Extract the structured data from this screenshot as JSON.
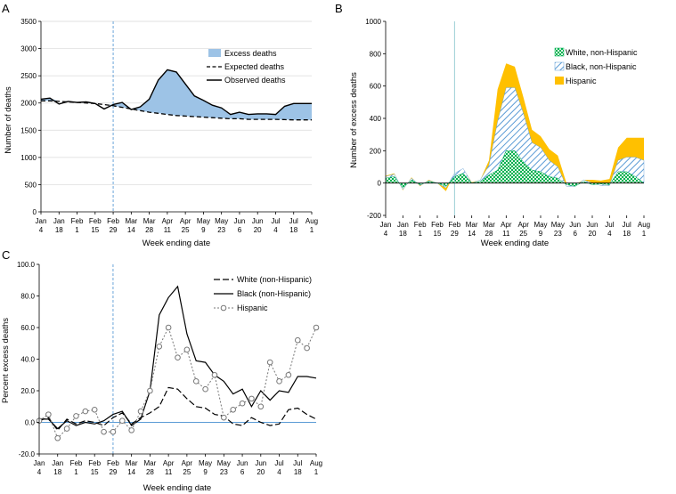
{
  "chart_data": [
    {
      "panel": "A",
      "type": "area",
      "xlabel": "Week ending date",
      "ylabel": "Number of deaths",
      "ylim": [
        0,
        3500
      ],
      "yticks": [
        0,
        500,
        1000,
        1500,
        2000,
        2500,
        3000,
        3500
      ],
      "x_tick_labels": [
        [
          "Jan",
          "4"
        ],
        [
          "Jan",
          "18"
        ],
        [
          "Feb",
          "1"
        ],
        [
          "Feb",
          "15"
        ],
        [
          "Feb",
          "29"
        ],
        [
          "Mar",
          "14"
        ],
        [
          "Mar",
          "28"
        ],
        [
          "Apr",
          "11"
        ],
        [
          "Apr",
          "25"
        ],
        [
          "May",
          "9"
        ],
        [
          "May",
          "23"
        ],
        [
          "Jun",
          "6"
        ],
        [
          "Jun",
          "20"
        ],
        [
          "Jul",
          "4"
        ],
        [
          "Jul",
          "18"
        ],
        [
          "Aug",
          "1"
        ]
      ],
      "n_weeks": 31,
      "reference_week_index": 8,
      "series": [
        {
          "name": "Observed deaths",
          "values": [
            2070,
            2090,
            1980,
            2030,
            2010,
            2020,
            1990,
            1890,
            1970,
            2010,
            1880,
            1930,
            2070,
            2420,
            2610,
            2570,
            2350,
            2130,
            2050,
            1960,
            1910,
            1790,
            1830,
            1790,
            1800,
            1800,
            1790,
            1940,
            1990,
            1990,
            1990
          ]
        },
        {
          "name": "Expected deaths",
          "values": [
            2040,
            2040,
            2030,
            2020,
            2010,
            2000,
            1990,
            1970,
            1950,
            1920,
            1890,
            1860,
            1830,
            1810,
            1790,
            1770,
            1760,
            1750,
            1740,
            1730,
            1720,
            1710,
            1710,
            1700,
            1700,
            1700,
            1700,
            1695,
            1690,
            1690,
            1690
          ]
        }
      ],
      "legend": [
        "Excess deaths",
        "Expected deaths",
        "Observed deaths"
      ],
      "colors": {
        "fill": "#9dc3e6",
        "line": "#000000",
        "ref": "#5b9bd5"
      }
    },
    {
      "panel": "B",
      "type": "area",
      "stacked": true,
      "xlabel": "Week ending date",
      "ylabel": "Number of excess deaths",
      "ylim": [
        -200,
        1000
      ],
      "yticks": [
        -200,
        0,
        200,
        400,
        600,
        800,
        1000
      ],
      "x_tick_labels": [
        [
          "Jan",
          "4"
        ],
        [
          "Jan",
          "18"
        ],
        [
          "Feb",
          "1"
        ],
        [
          "Feb",
          "15"
        ],
        [
          "Feb",
          "29"
        ],
        [
          "Mar",
          "14"
        ],
        [
          "Mar",
          "28"
        ],
        [
          "Apr",
          "11"
        ],
        [
          "Apr",
          "25"
        ],
        [
          "May",
          "9"
        ],
        [
          "May",
          "23"
        ],
        [
          "Jun",
          "6"
        ],
        [
          "Jun",
          "20"
        ],
        [
          "Jul",
          "4"
        ],
        [
          "Jul",
          "18"
        ],
        [
          "Aug",
          "1"
        ]
      ],
      "n_weeks": 31,
      "reference_week_index": 8,
      "series": [
        {
          "name": "White, non-Hispanic",
          "values": [
            30,
            40,
            -30,
            20,
            -10,
            10,
            0,
            -20,
            40,
            60,
            0,
            10,
            50,
            80,
            200,
            200,
            130,
            80,
            70,
            40,
            30,
            -10,
            -20,
            10,
            -10,
            -5,
            -10,
            70,
            70,
            40,
            0
          ]
        },
        {
          "name": "Black, non-Hispanic",
          "values": [
            10,
            15,
            -10,
            10,
            -5,
            5,
            0,
            -10,
            20,
            30,
            0,
            10,
            60,
            300,
            390,
            390,
            300,
            170,
            150,
            100,
            70,
            -10,
            0,
            10,
            10,
            -10,
            -5,
            70,
            90,
            120,
            140
          ]
        },
        {
          "name": "Hispanic",
          "values": [
            5,
            5,
            -5,
            5,
            -5,
            5,
            0,
            -20,
            0,
            0,
            5,
            0,
            30,
            200,
            150,
            130,
            100,
            80,
            70,
            70,
            70,
            20,
            10,
            0,
            20,
            30,
            40,
            80,
            120,
            120,
            140
          ]
        }
      ],
      "legend": [
        "White, non-Hispanic",
        "Black, non-Hispanic",
        "Hispanic"
      ],
      "colors": {
        "white": "#00b050",
        "black": "#5b9bd5",
        "hispanic": "#ffc000",
        "ref": "#8fc8d0"
      }
    },
    {
      "panel": "C",
      "type": "line",
      "xlabel": "Week ending date",
      "ylabel": "Percent excess deaths",
      "ylim": [
        -20,
        100
      ],
      "yticks": [
        -20.0,
        0.0,
        20.0,
        40.0,
        60.0,
        80.0,
        100.0
      ],
      "ytick_labels": [
        "-20.0",
        "0.0",
        "20.0",
        "40.0",
        "60.0",
        "80.0",
        "100.0"
      ],
      "x_tick_labels": [
        [
          "Jan",
          "4"
        ],
        [
          "Jan",
          "18"
        ],
        [
          "Feb",
          "1"
        ],
        [
          "Feb",
          "15"
        ],
        [
          "Feb",
          "29"
        ],
        [
          "Mar",
          "14"
        ],
        [
          "Mar",
          "28"
        ],
        [
          "Apr",
          "11"
        ],
        [
          "Apr",
          "25"
        ],
        [
          "May",
          "9"
        ],
        [
          "May",
          "23"
        ],
        [
          "Jun",
          "6"
        ],
        [
          "Jun",
          "20"
        ],
        [
          "Jul",
          "4"
        ],
        [
          "Jul",
          "18"
        ],
        [
          "Aug",
          "1"
        ]
      ],
      "n_weeks": 31,
      "reference_week_index": 8,
      "series": [
        {
          "name": "White (non-Hispanic)",
          "values": [
            1,
            3,
            -5,
            2,
            -1,
            1,
            0,
            -2,
            3,
            6,
            -1,
            3,
            6,
            10,
            22,
            21,
            15,
            10,
            9,
            5,
            4,
            -1,
            -2,
            3,
            0,
            -2,
            -1,
            8,
            9,
            5,
            2
          ]
        },
        {
          "name": "Black (non-Hispanic)",
          "values": [
            2,
            2,
            -4,
            1,
            -2,
            0,
            -1,
            1,
            5,
            7,
            -2,
            2,
            20,
            68,
            79,
            86,
            56,
            39,
            38,
            30,
            26,
            18,
            21,
            10,
            20,
            14,
            20,
            19,
            29,
            29,
            28
          ]
        },
        {
          "name": "Hispanic",
          "values": [
            1,
            5,
            -10,
            -4,
            4,
            7,
            8,
            -6,
            -6,
            1,
            -5,
            7,
            20,
            48,
            60,
            41,
            46,
            26,
            21,
            30,
            3,
            8,
            12,
            15,
            10,
            38,
            26,
            30,
            52,
            47,
            60
          ]
        }
      ],
      "legend": [
        "White (non-Hispanic)",
        "Black (non-Hispanic)",
        "Hispanic"
      ],
      "colors": {
        "white": "#000000",
        "black": "#000000",
        "hispanic": "#777777",
        "zero_line": "#5b9bd5",
        "ref": "#5b9bd5"
      }
    }
  ]
}
